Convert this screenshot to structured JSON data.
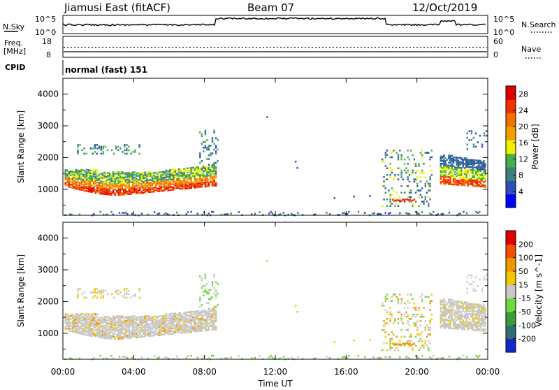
{
  "header": {
    "station": "Jiamusi East (fitACF)",
    "beam": "Beam 07",
    "date": "12/Oct/2019"
  },
  "top_panels": {
    "nsky": {
      "label": "N.Sky",
      "tick_top": "10^5",
      "tick_bottom": "10^0"
    },
    "nsearch": {
      "label": "N.Search",
      "tick_top": "10^5",
      "tick_bottom": "10^0"
    },
    "freq": {
      "label_line1": "Freq.",
      "label_line2": "[MHz]",
      "tick_top": "18",
      "tick_bottom": "8"
    },
    "nave": {
      "label": "Nave",
      "tick_top": "60",
      "tick_bottom": "0"
    },
    "cpid": {
      "label": "CPID",
      "value": "normal (fast) 151"
    }
  },
  "chart_data": [
    {
      "type": "heatmap",
      "title": "",
      "xlabel": "",
      "ylabel": "Slant Range [km]",
      "xlim": [
        "00:00",
        "00:00"
      ],
      "ylim": [
        180,
        4500
      ],
      "x_ticks": [
        "00:00",
        "04:00",
        "08:00",
        "12:00",
        "16:00",
        "20:00",
        "00:00"
      ],
      "y_ticks": [
        1000,
        2000,
        3000,
        4000
      ],
      "colorbar": {
        "label": "Power [dB]",
        "ticks": [
          4,
          8,
          12,
          16,
          20,
          24,
          28
        ],
        "range": [
          0,
          30
        ],
        "colors": [
          "#0000ff",
          "#2f4fb8",
          "#3c7f7f",
          "#46b046",
          "#f0f000",
          "#f0a000",
          "#f07000",
          "#f03000",
          "#e00000"
        ]
      },
      "echo_regions": [
        {
          "start_hour": 0.0,
          "end_hour": 8.6,
          "range_min_km": 800,
          "range_max_km": 1800,
          "level": "strong"
        },
        {
          "start_hour": 0.8,
          "end_hour": 4.2,
          "range_min_km": 2100,
          "range_max_km": 2500,
          "level": "weak"
        },
        {
          "start_hour": 18.0,
          "end_hour": 20.8,
          "range_min_km": 500,
          "range_max_km": 2300,
          "level": "moderate"
        },
        {
          "start_hour": 21.3,
          "end_hour": 24.0,
          "range_min_km": 1100,
          "range_max_km": 2100,
          "level": "strong"
        },
        {
          "start_hour": 0.0,
          "end_hour": 24.0,
          "range_min_km": 180,
          "range_max_km": 300,
          "level": "weak"
        }
      ]
    },
    {
      "type": "heatmap",
      "title": "",
      "xlabel": "Time UT",
      "ylabel": "Slant Range [km]",
      "xlim": [
        "00:00",
        "00:00"
      ],
      "ylim": [
        180,
        4500
      ],
      "x_ticks": [
        "00:00",
        "04:00",
        "08:00",
        "12:00",
        "16:00",
        "20:00",
        "00:00"
      ],
      "y_ticks": [
        1000,
        2000,
        3000,
        4000
      ],
      "colorbar": {
        "label": "Velocity [m s^-1]",
        "ticks": [
          200,
          100,
          50,
          15,
          -15,
          -50,
          -100,
          -200
        ],
        "colors": [
          "#1428c8",
          "#2f6f6f",
          "#3c9c3c",
          "#6fd83c",
          "#c8c8c8",
          "#f0c800",
          "#f09600",
          "#f05000",
          "#e00000"
        ]
      }
    }
  ]
}
